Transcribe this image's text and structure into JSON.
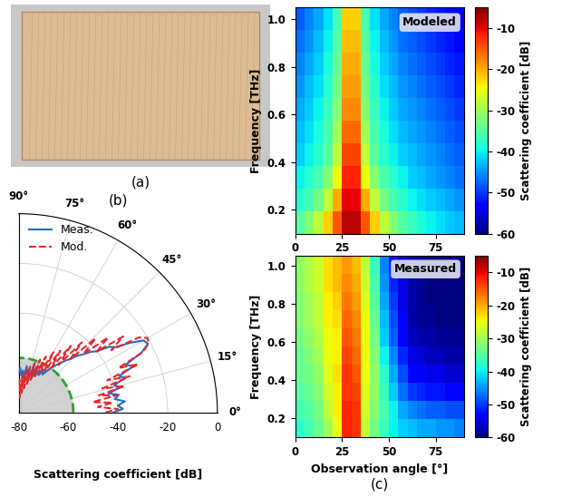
{
  "chart_data": [
    {
      "type": "image",
      "caption": "(a)"
    },
    {
      "type": "polar",
      "caption": "(b)",
      "xlabel": "Scattering coefficient [dB]",
      "xlim": [
        0,
        90
      ],
      "xticks": [
        {
          "value": 0,
          "label": "0°"
        },
        {
          "value": 15,
          "label": "15°"
        },
        {
          "value": 30,
          "label": "30°"
        },
        {
          "value": 45,
          "label": "45°"
        },
        {
          "value": 60,
          "label": "60°"
        },
        {
          "value": 75,
          "label": "75°"
        },
        {
          "value": 90,
          "label": "90°"
        }
      ],
      "ylim": [
        -80,
        0
      ],
      "yticks": [
        -80,
        -60,
        -40,
        -20,
        0
      ],
      "grid": true,
      "legend": "upper left",
      "x": [
        0,
        2,
        4,
        6,
        8,
        10,
        12,
        14,
        16,
        18,
        20,
        22,
        24,
        26,
        28,
        30,
        32,
        34,
        36,
        38,
        40,
        42,
        44,
        46,
        48,
        50,
        52,
        54,
        56,
        58,
        60,
        62,
        64,
        66,
        68,
        70,
        72,
        74,
        76,
        78,
        80,
        82,
        84,
        86,
        88,
        90
      ],
      "series": [
        {
          "name": "Meas.",
          "color": "#1f6fc4",
          "line_style": "solid",
          "values": [
            -42,
            -38,
            -40,
            -37,
            -41,
            -39,
            -43,
            -38,
            -40,
            -35,
            -37,
            -30,
            -33,
            -25,
            -21,
            -22,
            -27,
            -33,
            -35,
            -40,
            -42,
            -45,
            -47,
            -50,
            -52,
            -54,
            -56,
            -58,
            -60,
            -62,
            -60,
            -63,
            -61,
            -64,
            -62,
            -65,
            -60,
            -66,
            -62,
            -64,
            -61,
            -66,
            -63,
            -65,
            -62,
            -64
          ]
        },
        {
          "name": "Mod.",
          "color": "#e8262a",
          "line_style": "dashed",
          "values": [
            -45,
            -40,
            -48,
            -42,
            -50,
            -40,
            -47,
            -36,
            -45,
            -33,
            -42,
            -28,
            -36,
            -24,
            -21,
            -20,
            -23,
            -35,
            -28,
            -40,
            -33,
            -45,
            -37,
            -50,
            -42,
            -55,
            -46,
            -58,
            -50,
            -60,
            -52,
            -62,
            -55,
            -64,
            -57,
            -66,
            -59,
            -68,
            -61,
            -70,
            -63,
            -72,
            -65,
            -74,
            -67,
            -70
          ]
        }
      ],
      "noise_floor": {
        "value": -58,
        "color": "#2ca02c",
        "line_style": "dashed"
      }
    },
    {
      "type": "heatmap",
      "annotation": "Modeled",
      "ylabel": "Frequency [THz]",
      "xlim": [
        0,
        90
      ],
      "xticks": [
        0,
        25,
        50,
        75
      ],
      "ylim": [
        0.1,
        1.05
      ],
      "yticks": [
        0.2,
        0.4,
        0.6,
        0.8,
        1.0
      ],
      "x_bins": [
        0,
        5,
        10,
        15,
        20,
        25,
        30,
        35,
        40,
        45,
        50,
        55,
        60,
        65,
        70,
        75,
        80,
        85,
        90
      ],
      "y_bins": [
        0.1,
        0.195,
        0.29,
        0.385,
        0.48,
        0.575,
        0.67,
        0.765,
        0.86,
        0.955,
        1.05
      ],
      "cells": [
        [
          -35,
          -32,
          -28,
          -22,
          -15,
          -8,
          -8,
          -15,
          -22,
          -28,
          -32,
          -35,
          -37,
          -39,
          -40,
          -41,
          -42,
          -43
        ],
        [
          -38,
          -36,
          -33,
          -28,
          -20,
          -10,
          -10,
          -20,
          -28,
          -33,
          -36,
          -38,
          -40,
          -41,
          -42,
          -43,
          -44,
          -45
        ],
        [
          -40,
          -38,
          -36,
          -32,
          -25,
          -12,
          -12,
          -25,
          -32,
          -36,
          -38,
          -40,
          -42,
          -43,
          -44,
          -45,
          -46,
          -47
        ],
        [
          -42,
          -40,
          -38,
          -35,
          -28,
          -14,
          -14,
          -28,
          -35,
          -38,
          -40,
          -42,
          -43,
          -44,
          -45,
          -46,
          -47,
          -48
        ],
        [
          -43,
          -41,
          -39,
          -36,
          -30,
          -16,
          -16,
          -30,
          -36,
          -39,
          -41,
          -43,
          -44,
          -45,
          -46,
          -47,
          -48,
          -49
        ],
        [
          -44,
          -42,
          -40,
          -37,
          -32,
          -18,
          -18,
          -32,
          -37,
          -40,
          -42,
          -44,
          -45,
          -46,
          -47,
          -48,
          -49,
          -50
        ],
        [
          -45,
          -43,
          -41,
          -38,
          -33,
          -19,
          -19,
          -33,
          -38,
          -41,
          -43,
          -45,
          -46,
          -47,
          -48,
          -49,
          -50,
          -51
        ],
        [
          -46,
          -44,
          -42,
          -39,
          -34,
          -20,
          -20,
          -34,
          -39,
          -42,
          -44,
          -46,
          -47,
          -48,
          -49,
          -50,
          -51,
          -52
        ],
        [
          -47,
          -45,
          -43,
          -40,
          -35,
          -21,
          -21,
          -35,
          -40,
          -43,
          -45,
          -47,
          -48,
          -49,
          -50,
          -51,
          -52,
          -53
        ],
        [
          -48,
          -46,
          -44,
          -41,
          -36,
          -22,
          -22,
          -36,
          -41,
          -44,
          -46,
          -48,
          -49,
          -50,
          -51,
          -52,
          -53,
          -54
        ]
      ],
      "colorbar": {
        "label": "Scattering coefficient [dB]",
        "range": [
          -60,
          -5
        ],
        "ticks": [
          -10,
          -20,
          -30,
          -40,
          -50,
          -60
        ]
      }
    },
    {
      "type": "heatmap",
      "annotation": "Measured",
      "ylabel": "Frequency [THz]",
      "xlabel": "Observation angle [°]",
      "caption": "(c)",
      "xlim": [
        0,
        90
      ],
      "xticks": [
        0,
        25,
        50,
        75
      ],
      "ylim": [
        0.1,
        1.05
      ],
      "yticks": [
        0.2,
        0.4,
        0.6,
        0.8,
        1.0
      ],
      "x_bins": [
        0,
        5,
        10,
        15,
        20,
        25,
        30,
        35,
        40,
        45,
        50,
        55,
        60,
        65,
        70,
        75,
        80,
        85,
        90
      ],
      "y_bins": [
        0.1,
        0.195,
        0.29,
        0.385,
        0.48,
        0.575,
        0.67,
        0.765,
        0.86,
        0.955,
        1.05
      ],
      "cells": [
        [
          -38,
          -36,
          -34,
          -30,
          -25,
          -12,
          -13,
          -28,
          -33,
          -37,
          -40,
          -42,
          -43,
          -44,
          -44,
          -45,
          -45,
          -46
        ],
        [
          -36,
          -35,
          -33,
          -28,
          -24,
          -12,
          -13,
          -27,
          -32,
          -36,
          -40,
          -44,
          -46,
          -47,
          -48,
          -48,
          -49,
          -49
        ],
        [
          -35,
          -34,
          -32,
          -27,
          -24,
          -13,
          -14,
          -26,
          -31,
          -37,
          -42,
          -47,
          -50,
          -51,
          -52,
          -52,
          -53,
          -53
        ],
        [
          -34,
          -33,
          -31,
          -26,
          -23,
          -13,
          -15,
          -25,
          -31,
          -38,
          -44,
          -49,
          -53,
          -54,
          -55,
          -55,
          -56,
          -56
        ],
        [
          -34,
          -32,
          -30,
          -25,
          -24,
          -14,
          -16,
          -25,
          -32,
          -40,
          -46,
          -51,
          -55,
          -56,
          -57,
          -57,
          -58,
          -58
        ],
        [
          -33,
          -31,
          -29,
          -25,
          -24,
          -15,
          -17,
          -25,
          -33,
          -42,
          -48,
          -53,
          -57,
          -58,
          -58,
          -59,
          -59,
          -59
        ],
        [
          -32,
          -30,
          -28,
          -24,
          -23,
          -16,
          -18,
          -25,
          -34,
          -43,
          -49,
          -54,
          -58,
          -59,
          -59,
          -60,
          -60,
          -60
        ],
        [
          -32,
          -30,
          -28,
          -24,
          -22,
          -17,
          -19,
          -26,
          -35,
          -44,
          -50,
          -55,
          -58,
          -59,
          -60,
          -60,
          -60,
          -60
        ],
        [
          -31,
          -29,
          -27,
          -23,
          -21,
          -18,
          -20,
          -27,
          -36,
          -45,
          -51,
          -55,
          -58,
          -59,
          -60,
          -60,
          -60,
          -60
        ],
        [
          -31,
          -29,
          -27,
          -23,
          -21,
          -19,
          -21,
          -28,
          -37,
          -46,
          -52,
          -56,
          -58,
          -59,
          -60,
          -60,
          -60,
          -60
        ]
      ],
      "colorbar": {
        "label": "Scattering coefficient [dB]",
        "range": [
          -60,
          -5
        ],
        "ticks": [
          -10,
          -20,
          -30,
          -40,
          -50,
          -60
        ]
      }
    }
  ]
}
